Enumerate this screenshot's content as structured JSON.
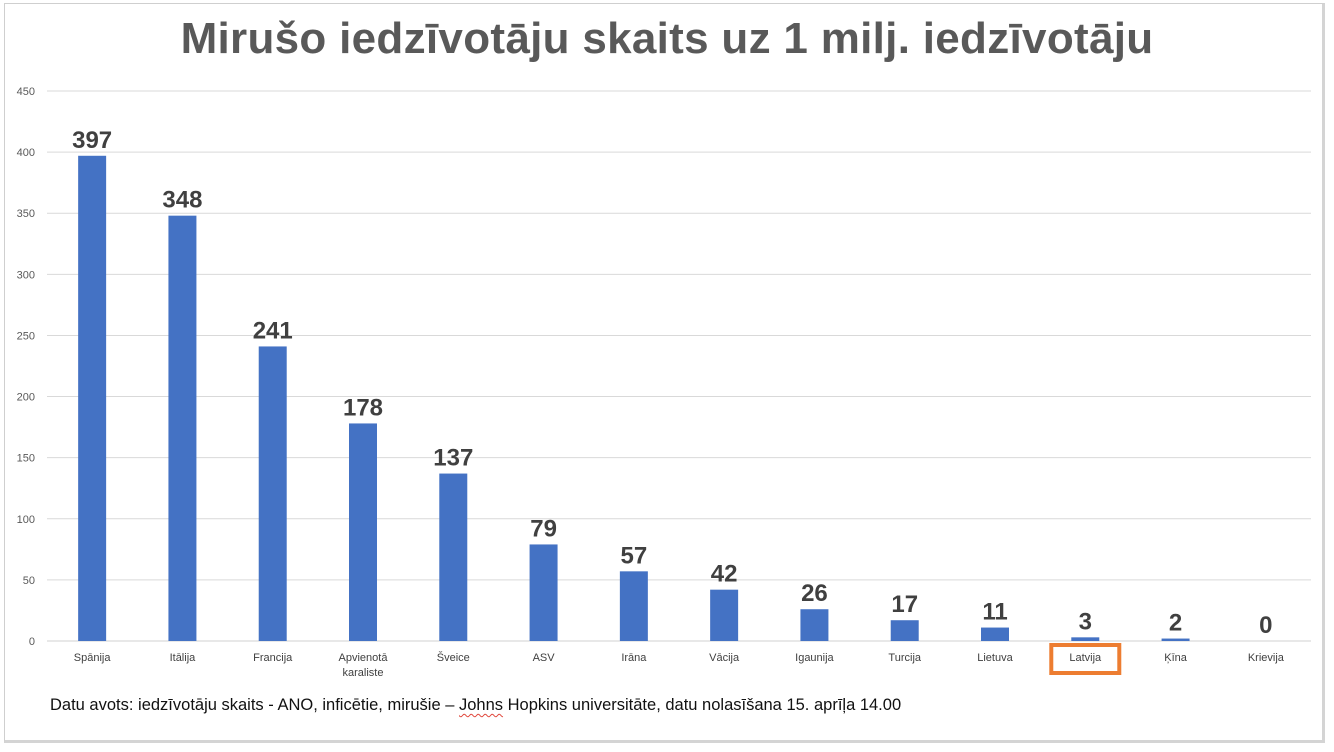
{
  "chart_data": {
    "type": "bar",
    "title": "Mirušo iedzīvotāju skaits uz 1 milj. iedzīvotāju",
    "categories": [
      "Spānija",
      "Itālija",
      "Francija",
      [
        "Apvienotā",
        "karaliste"
      ],
      "Šveice",
      "ASV",
      "Irāna",
      "Vācija",
      "Igaunija",
      "Turcija",
      "Lietuva",
      "Latvija",
      "Ķīna",
      "Krievija"
    ],
    "values": [
      397,
      348,
      241,
      178,
      137,
      79,
      57,
      42,
      26,
      17,
      11,
      3,
      2,
      0
    ],
    "ylim": [
      0,
      450
    ],
    "yticks": [
      0,
      50,
      100,
      150,
      200,
      250,
      300,
      350,
      400,
      450
    ],
    "xlabel": "",
    "ylabel": "",
    "grid": true,
    "bar_color": "#4472C4",
    "highlight_category": "Latvija",
    "highlight_color": "#ED7D31"
  },
  "footer": {
    "source_prefix": "Datu avots: iedzīvotāju skaits - ANO, inficētie, mirušie – ",
    "source_underlined": "Johns",
    "source_suffix": " Hopkins universitāte, datu nolasīšana 15. aprīļa 14.00"
  }
}
